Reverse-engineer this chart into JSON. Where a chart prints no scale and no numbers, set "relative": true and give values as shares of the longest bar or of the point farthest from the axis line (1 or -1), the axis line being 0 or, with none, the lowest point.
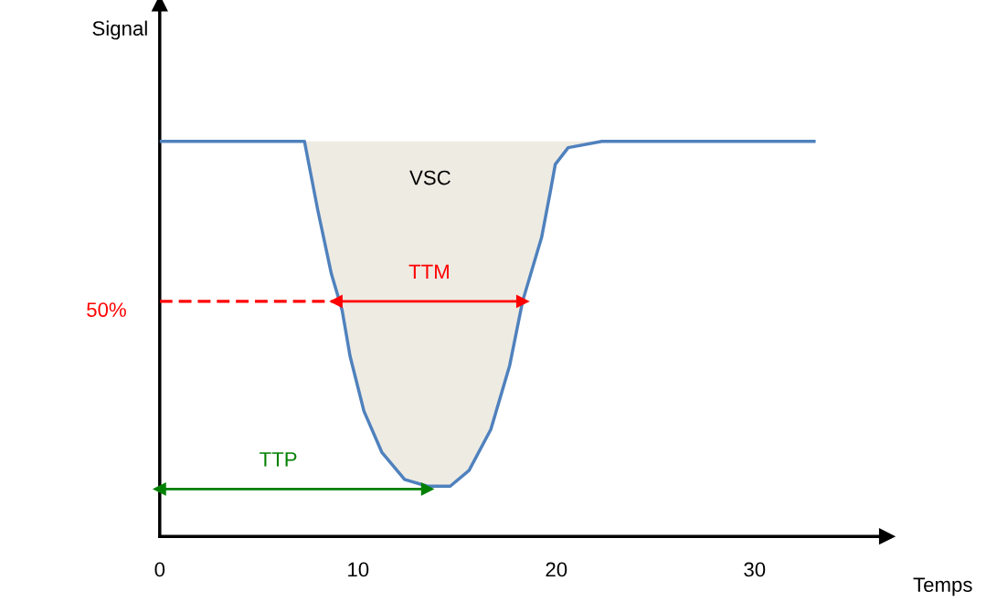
{
  "chart_data": {
    "type": "line",
    "relative": true,
    "xlabel": "Temps",
    "xlim": [
      0,
      36.4
    ],
    "xticks": [
      0,
      10,
      20,
      30
    ],
    "grid": false,
    "series": [
      {
        "color": "#4f81bd",
        "x": [
          0,
          7.3,
          7.97,
          8.66,
          9.2,
          9.6,
          10.3,
          11.2,
          12.35,
          13.5,
          14.65,
          15.6,
          16.7,
          17.65,
          18.3,
          19.26,
          19.7,
          19.95,
          20.6,
          22.3,
          33.0
        ],
        "values": [
          1.0,
          1.0,
          0.826,
          0.664,
          0.572,
          0.456,
          0.317,
          0.213,
          0.144,
          0.127,
          0.127,
          0.167,
          0.271,
          0.433,
          0.595,
          0.757,
          0.873,
          0.942,
          0.984,
          1.0,
          1.0
        ],
        "lower": [
          1.0,
          1.0,
          0.826,
          0.664,
          0.572,
          0.456,
          0.317,
          0.213,
          0.144,
          0.127,
          0.127,
          0.167,
          0.271,
          0.433,
          0.595,
          0.757,
          0.873,
          0.942,
          0.984,
          1.0,
          1.0
        ],
        "upper": [
          1.0,
          1.0,
          1.0,
          1.0,
          1.0,
          1.0,
          1.0,
          1.0,
          1.0,
          1.0,
          1.0,
          1.0,
          1.0,
          1.0,
          1.0,
          1.0,
          1.0,
          1.0,
          1.0,
          1.0,
          1.0
        ]
      },
      {
        "color": "#ff0000",
        "x": [
          0,
          8.9
        ],
        "values": [
          0.595,
          0.595
        ],
        "line_style": "dashed"
      },
      {
        "color": "#ff0000",
        "x": [
          8.9,
          18.3
        ],
        "values": [
          0.595,
          0.595
        ],
        "marker": "triangle"
      },
      {
        "color": "#008000",
        "x": [
          0,
          13.5
        ],
        "values": [
          0.12,
          0.12
        ],
        "marker": "triangle"
      }
    ],
    "annotations": [
      "VSC",
      "TTM",
      "TTP",
      "50%",
      "Signal"
    ]
  }
}
